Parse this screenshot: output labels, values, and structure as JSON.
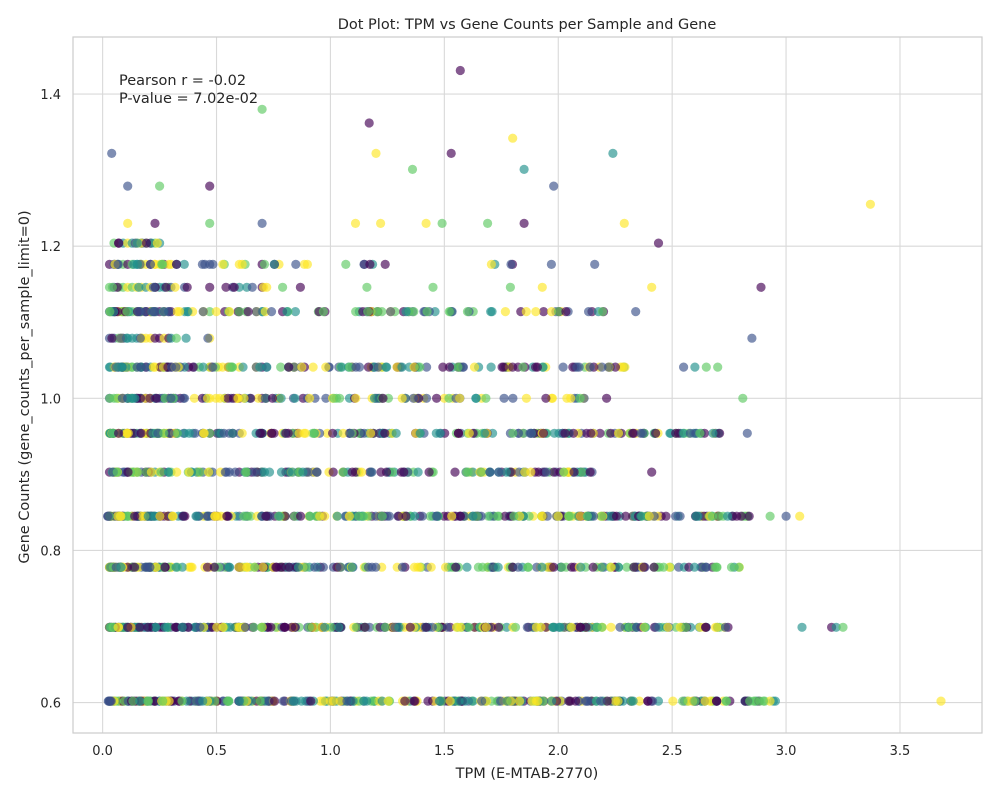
{
  "chart_data": {
    "type": "scatter",
    "title": "Dot Plot: TPM vs Gene Counts per Sample and Gene",
    "xlabel": "TPM (E-MTAB-2770)",
    "ylabel": "Gene Counts (gene_counts_per_sample_limit=0)",
    "xlim": [
      -0.13,
      3.86
    ],
    "ylim": [
      0.56,
      1.475
    ],
    "xticks": [
      0.0,
      0.5,
      1.0,
      1.5,
      2.0,
      2.5,
      3.0,
      3.5
    ],
    "xtick_labels": [
      "0.0",
      "0.5",
      "1.0",
      "1.5",
      "2.0",
      "2.5",
      "3.0",
      "3.5"
    ],
    "yticks": [
      0.6,
      0.8,
      1.0,
      1.2,
      1.4
    ],
    "ytick_labels": [
      "0.6",
      "0.8",
      "1.0",
      "1.2",
      "1.4"
    ],
    "grid": true,
    "colormap": [
      "#440154",
      "#3b528b",
      "#21918c",
      "#5ec962",
      "#fde725"
    ],
    "marker_alpha": 0.65,
    "annotations": [
      "Pearson r = -0.02",
      "P-value = 7.02e-02"
    ],
    "rows": [
      {
        "y": 0.602,
        "xmin": 0.02,
        "xmax": 2.97,
        "n": 320,
        "extra": [
          3.68
        ]
      },
      {
        "y": 0.699,
        "xmin": 0.03,
        "xmax": 2.84,
        "n": 300,
        "extra": [
          3.07,
          3.2,
          3.22,
          3.25
        ]
      },
      {
        "y": 0.778,
        "xmin": 0.03,
        "xmax": 2.81,
        "n": 230,
        "extra": []
      },
      {
        "y": 0.845,
        "xmin": 0.02,
        "xmax": 2.84,
        "n": 300,
        "extra": [
          2.93,
          3.0,
          3.06
        ]
      },
      {
        "y": 0.903,
        "xmin": 0.03,
        "xmax": 2.16,
        "n": 150,
        "extra": [
          2.41
        ]
      },
      {
        "y": 0.954,
        "xmin": 0.03,
        "xmax": 2.72,
        "n": 220,
        "extra": [
          2.83
        ]
      },
      {
        "y": 1.0,
        "xmin": 0.03,
        "xmax": 2.22,
        "n": 110,
        "extra": [
          2.81
        ]
      },
      {
        "y": 1.041,
        "xmin": 0.03,
        "xmax": 2.3,
        "n": 150,
        "extra": [
          2.55,
          2.6,
          2.65,
          2.7
        ]
      },
      {
        "y": 1.079,
        "xmin": 0.03,
        "xmax": 0.5,
        "n": 10,
        "extra": [
          2.85
        ]
      },
      {
        "y": 1.114,
        "xmin": 0.03,
        "xmax": 2.22,
        "n": 110,
        "extra": [
          2.34
        ]
      },
      {
        "y": 1.146,
        "xmin": 0.03,
        "xmax": 0.9,
        "n": 18,
        "extra": [
          1.16,
          1.45,
          1.79,
          1.93,
          2.41,
          2.89
        ]
      },
      {
        "y": 1.176,
        "xmin": 0.03,
        "xmax": 1.8,
        "n": 40,
        "extra": [
          1.97,
          2.16
        ]
      },
      {
        "y": 1.204,
        "xmin": 0.04,
        "xmax": 0.24,
        "n": 8,
        "extra": [
          2.44
        ]
      }
    ],
    "points": [
      {
        "x": 0.04,
        "y": 1.322
      },
      {
        "x": 0.11,
        "y": 1.279
      },
      {
        "x": 0.25,
        "y": 1.279
      },
      {
        "x": 0.47,
        "y": 1.279
      },
      {
        "x": 0.11,
        "y": 1.23
      },
      {
        "x": 0.23,
        "y": 1.23
      },
      {
        "x": 0.47,
        "y": 1.23
      },
      {
        "x": 0.7,
        "y": 1.23
      },
      {
        "x": 0.7,
        "y": 1.38
      },
      {
        "x": 1.11,
        "y": 1.23
      },
      {
        "x": 1.22,
        "y": 1.23
      },
      {
        "x": 1.42,
        "y": 1.23
      },
      {
        "x": 1.49,
        "y": 1.23
      },
      {
        "x": 1.69,
        "y": 1.23
      },
      {
        "x": 1.85,
        "y": 1.23
      },
      {
        "x": 2.29,
        "y": 1.23
      },
      {
        "x": 1.17,
        "y": 1.362
      },
      {
        "x": 1.2,
        "y": 1.322
      },
      {
        "x": 1.36,
        "y": 1.301
      },
      {
        "x": 1.53,
        "y": 1.322
      },
      {
        "x": 1.57,
        "y": 1.431
      },
      {
        "x": 1.8,
        "y": 1.342
      },
      {
        "x": 1.85,
        "y": 1.301
      },
      {
        "x": 1.98,
        "y": 1.279
      },
      {
        "x": 2.24,
        "y": 1.322
      },
      {
        "x": 3.37,
        "y": 1.255
      }
    ]
  }
}
